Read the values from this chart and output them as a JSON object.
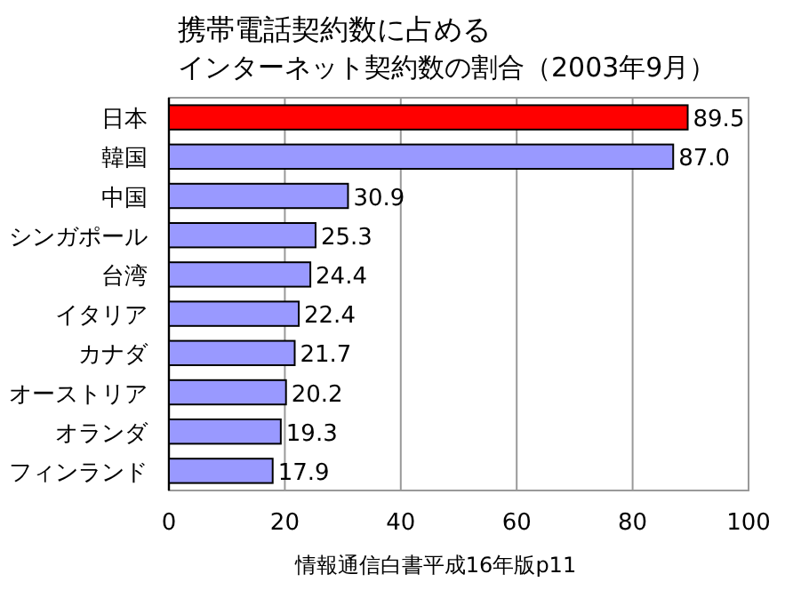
{
  "chart_data": {
    "type": "bar",
    "orientation": "horizontal",
    "title": "携帯電話契約数に占める",
    "subtitle": "インターネット契約数の割合（2003年9月）",
    "categories": [
      "日本",
      "韓国",
      "中国",
      "シンガポール",
      "台湾",
      "イタリア",
      "カナダ",
      "オーストリア",
      "オランダ",
      "フィンランド"
    ],
    "values": [
      89.5,
      87.0,
      30.9,
      25.3,
      24.4,
      22.4,
      21.7,
      20.2,
      19.3,
      17.9
    ],
    "value_labels": [
      "89.5",
      "87.0",
      "30.9",
      "25.3",
      "24.4",
      "22.4",
      "21.7",
      "20.2",
      "19.3",
      "17.9"
    ],
    "colors": [
      "#ff0000",
      "#9999ff",
      "#9999ff",
      "#9999ff",
      "#9999ff",
      "#9999ff",
      "#9999ff",
      "#9999ff",
      "#9999ff",
      "#9999ff"
    ],
    "xlim": [
      0,
      100
    ],
    "xticks": [
      0,
      20,
      40,
      60,
      80,
      100
    ],
    "grid": "x",
    "annotations": [
      "情報通信白書平成16年版p11"
    ]
  }
}
